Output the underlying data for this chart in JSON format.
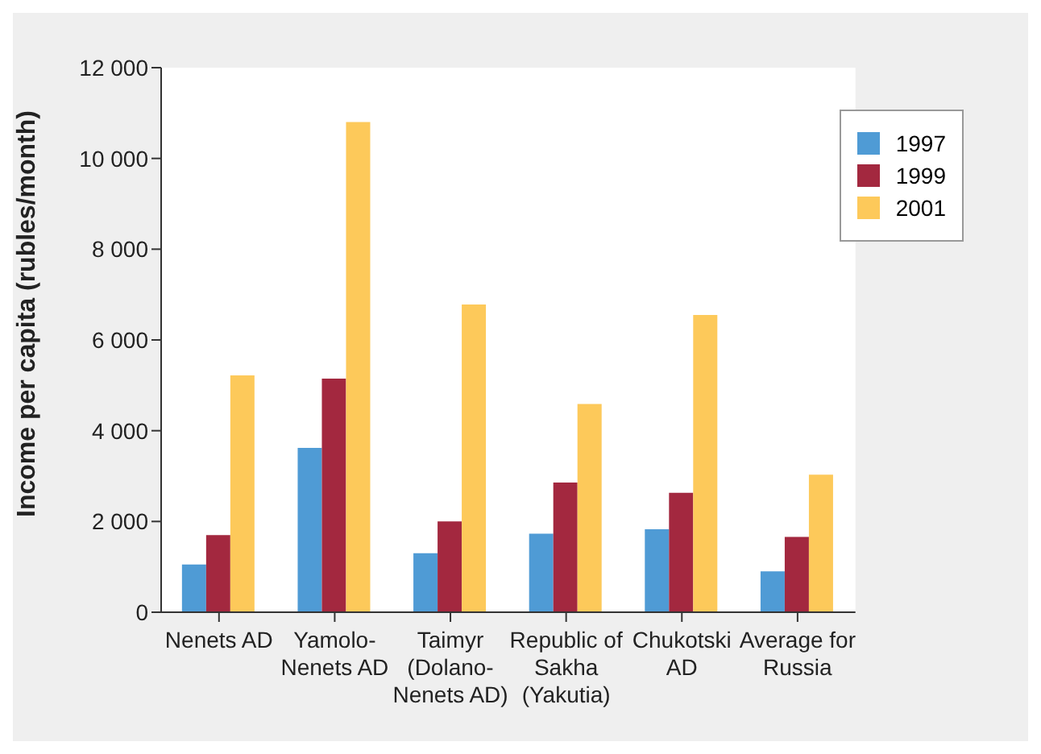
{
  "chart_data": {
    "type": "bar",
    "ylabel": "Income per capita (rubles/month)",
    "categories": [
      "Nenets AD",
      "Yamolo-\nNenets AD",
      "Taimyr\n(Dolano-\nNenets AD)",
      "Republic of\nSakha\n(Yakutia)",
      "Chukotski\nAD",
      "Average for\nRussia"
    ],
    "series": [
      {
        "name": "1997",
        "color": "#4f9bd5",
        "values": [
          1050,
          3620,
          1300,
          1730,
          1830,
          900
        ]
      },
      {
        "name": "1999",
        "color": "#a3283f",
        "values": [
          1700,
          5150,
          2000,
          2860,
          2630,
          1660
        ]
      },
      {
        "name": "2001",
        "color": "#fdc95a",
        "values": [
          5220,
          10800,
          6780,
          4590,
          6550,
          3030
        ]
      }
    ],
    "ylim": [
      0,
      12000
    ],
    "yticks": [
      {
        "value": 0,
        "label": "0"
      },
      {
        "value": 2000,
        "label": "2 000"
      },
      {
        "value": 4000,
        "label": "4 000"
      },
      {
        "value": 6000,
        "label": "6 000"
      },
      {
        "value": 8000,
        "label": "8 000"
      },
      {
        "value": 10000,
        "label": "10 000"
      },
      {
        "value": 12000,
        "label": "12 000"
      }
    ],
    "legend": "top right"
  }
}
